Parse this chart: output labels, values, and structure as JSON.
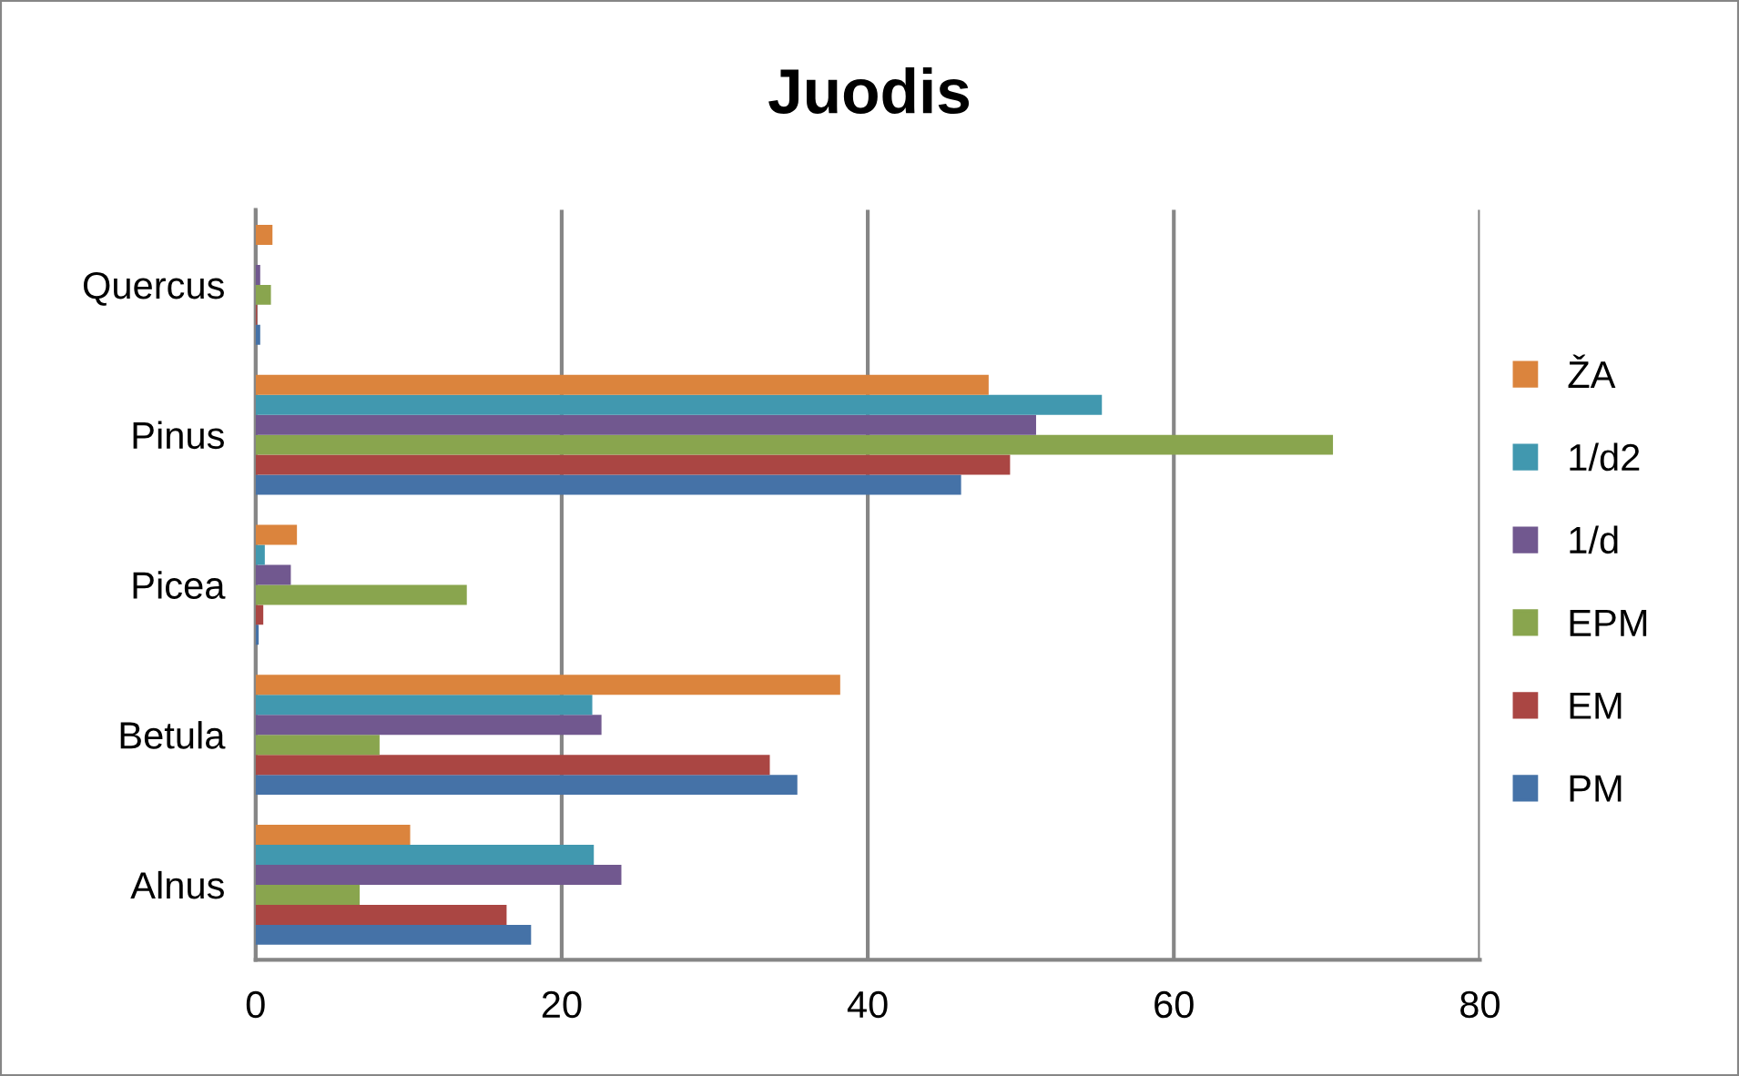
{
  "chart_data": {
    "type": "bar",
    "orientation": "horizontal",
    "title": "Juodis",
    "categories": [
      "Quercus",
      "Pinus",
      "Picea",
      "Betula",
      "Alnus"
    ],
    "series": [
      {
        "name": "PM",
        "color": "#4572a7",
        "values": [
          0.3,
          46.1,
          0.2,
          35.4,
          18.0
        ]
      },
      {
        "name": "EM",
        "color": "#aa4643",
        "values": [
          0.1,
          49.3,
          0.5,
          33.6,
          16.4
        ]
      },
      {
        "name": "EPM",
        "color": "#89a54e",
        "values": [
          1.0,
          70.4,
          13.8,
          8.1,
          6.8
        ]
      },
      {
        "name": "1/d",
        "color": "#71588f",
        "values": [
          0.3,
          51.0,
          2.3,
          22.6,
          23.9
        ]
      },
      {
        "name": "1/d2",
        "color": "#4198af",
        "values": [
          0.0,
          55.3,
          0.6,
          22.0,
          22.1
        ]
      },
      {
        "name": "ŽA",
        "color": "#db843d",
        "values": [
          1.1,
          47.9,
          2.7,
          38.2,
          10.1
        ]
      }
    ],
    "xlim": [
      0,
      80
    ],
    "xticks": [
      0,
      20,
      40,
      60,
      80
    ],
    "grid": "x",
    "legend": "right"
  }
}
